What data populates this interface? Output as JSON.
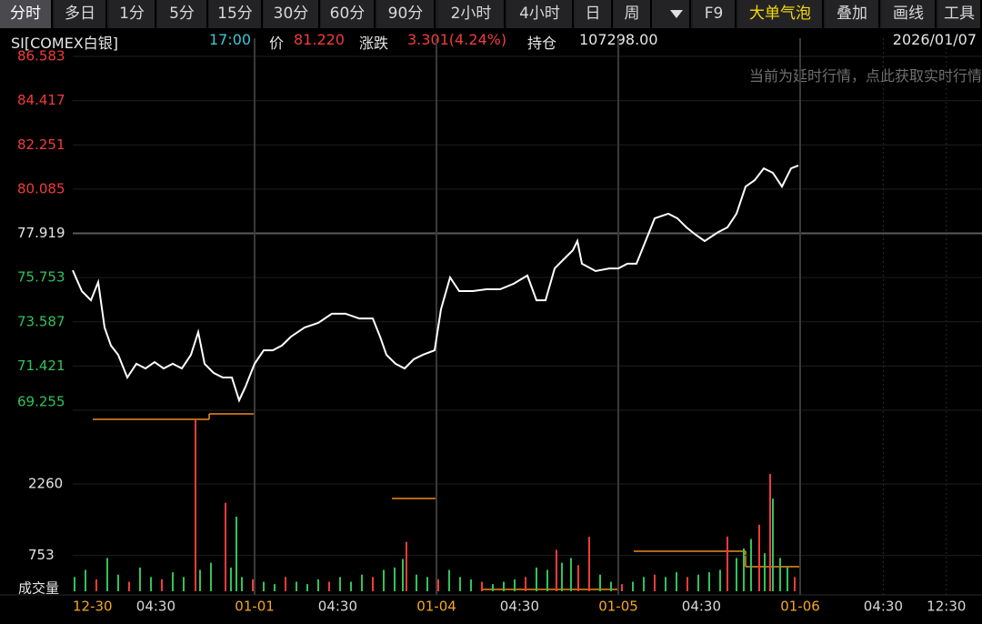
{
  "toolbar": {
    "tabs": [
      "分时",
      "多日",
      "1分",
      "5分",
      "15分",
      "30分",
      "60分",
      "90分",
      "2小时",
      "4小时",
      "日",
      "周"
    ],
    "tools": [
      "F9",
      "大单气泡",
      "叠加",
      "画线",
      "工具"
    ]
  },
  "info": {
    "symbol": "SI[COMEX白银]",
    "time": "17:00",
    "price_label": "价",
    "price": "81.220",
    "change_label": "涨跌",
    "change": "3.301(4.24%)",
    "oi_label": "持仓",
    "oi": "107298.00",
    "date": "2026/01/07",
    "notice": "当前为延时行情，点此获取实时行情"
  },
  "chart_data": {
    "type": "line",
    "xlim": [
      0,
      5
    ],
    "xticks": [
      {
        "value": 0,
        "label": "12-30"
      },
      {
        "value": 0.457,
        "label": "04:30"
      },
      {
        "value": 1,
        "label": "01-01"
      },
      {
        "value": 1.457,
        "label": "04:30"
      },
      {
        "value": 2,
        "label": "01-04"
      },
      {
        "value": 2.457,
        "label": "04:30"
      },
      {
        "value": 3,
        "label": "01-05"
      },
      {
        "value": 3.457,
        "label": "04:30"
      },
      {
        "value": 4,
        "label": "01-06"
      },
      {
        "value": 4.457,
        "label": "04:30"
      },
      {
        "value": 4.804,
        "label": "12:30"
      }
    ],
    "ylim": [
      69.255,
      86.583
    ],
    "yticks": [
      86.583,
      84.417,
      82.251,
      80.085,
      77.919,
      75.753,
      73.587,
      71.421,
      69.255
    ],
    "baseline": 77.919,
    "up_color": "#f23b3b",
    "down_color": "#2fc45a",
    "series": [
      {
        "color": "#ffffff",
        "x": [
          0,
          0.05,
          0.1,
          0.14,
          0.175,
          0.21,
          0.25,
          0.3,
          0.35,
          0.4,
          0.45,
          0.5,
          0.55,
          0.6,
          0.65,
          0.69,
          0.725,
          0.775,
          0.825,
          0.875,
          0.915,
          0.95,
          1.0,
          1.05,
          1.1,
          1.15,
          1.2,
          1.275,
          1.35,
          1.425,
          1.5,
          1.575,
          1.65,
          1.69,
          1.725,
          1.775,
          1.825,
          1.875,
          1.925,
          1.99,
          2.025,
          2.075,
          2.125,
          2.2,
          2.275,
          2.35,
          2.425,
          2.5,
          2.55,
          2.6,
          2.65,
          2.7,
          2.75,
          2.775,
          2.8,
          2.875,
          2.95,
          3.0,
          3.05,
          3.1,
          3.15,
          3.2,
          3.275,
          3.325,
          3.375,
          3.425,
          3.475,
          3.55,
          3.6,
          3.65,
          3.7,
          3.75,
          3.8,
          3.85,
          3.9,
          3.95,
          3.99
        ],
        "values": [
          76.11,
          75.09,
          74.64,
          75.53,
          73.31,
          72.42,
          71.97,
          70.86,
          71.53,
          71.3,
          71.61,
          71.3,
          71.53,
          71.3,
          71.97,
          73.08,
          71.53,
          71.08,
          70.86,
          70.86,
          69.74,
          70.41,
          71.53,
          72.19,
          72.19,
          72.42,
          72.86,
          73.31,
          73.53,
          73.98,
          73.98,
          73.75,
          73.75,
          72.86,
          71.97,
          71.53,
          71.3,
          71.75,
          71.97,
          72.19,
          74.2,
          75.76,
          75.09,
          75.09,
          75.18,
          75.18,
          75.45,
          75.85,
          74.64,
          74.64,
          76.2,
          76.65,
          77.09,
          77.54,
          76.43,
          76.07,
          76.2,
          76.2,
          76.43,
          76.43,
          77.54,
          78.65,
          78.88,
          78.65,
          78.21,
          77.85,
          77.54,
          77.98,
          78.21,
          78.88,
          80.21,
          80.52,
          81.1,
          80.88,
          80.21,
          81.1,
          81.24
        ]
      }
    ],
    "volume": {
      "label": "成交量",
      "ylim": [
        0,
        3600
      ],
      "yticks": [
        2260,
        753
      ],
      "x": [
        0.01,
        0.07,
        0.13,
        0.19,
        0.25,
        0.31,
        0.37,
        0.43,
        0.49,
        0.55,
        0.61,
        0.675,
        0.7,
        0.76,
        0.84,
        0.87,
        0.9,
        0.93,
        0.99,
        1.05,
        1.11,
        1.17,
        1.23,
        1.29,
        1.35,
        1.41,
        1.47,
        1.53,
        1.59,
        1.65,
        1.71,
        1.77,
        1.815,
        1.835,
        1.89,
        1.95,
        2.01,
        2.07,
        2.13,
        2.19,
        2.25,
        2.31,
        2.37,
        2.43,
        2.49,
        2.55,
        2.61,
        2.66,
        2.69,
        2.74,
        2.78,
        2.84,
        2.9,
        2.96,
        3.02,
        3.08,
        3.14,
        3.2,
        3.26,
        3.32,
        3.38,
        3.44,
        3.5,
        3.56,
        3.6,
        3.65,
        3.69,
        3.73,
        3.775,
        3.805,
        3.835,
        3.85,
        3.89,
        3.93,
        3.97
      ],
      "values": [
        300,
        450,
        250,
        700,
        350,
        200,
        500,
        300,
        250,
        400,
        300,
        3600,
        450,
        600,
        1860,
        500,
        1570,
        300,
        250,
        200,
        150,
        300,
        200,
        150,
        250,
        200,
        300,
        200,
        350,
        300,
        450,
        500,
        680,
        1040,
        350,
        300,
        250,
        450,
        300,
        250,
        200,
        150,
        200,
        250,
        300,
        500,
        450,
        870,
        600,
        700,
        550,
        1145,
        350,
        200,
        150,
        200,
        300,
        350,
        300,
        400,
        300,
        350,
        400,
        450,
        1150,
        700,
        900,
        1100,
        1400,
        800,
        2470,
        1950,
        700,
        500,
        300
      ],
      "colors": [
        "#2fc45a",
        "#2fc45a",
        "#f23b3b",
        "#2fc45a",
        "#2fc45a",
        "#f23b3b",
        "#2fc45a",
        "#2fc45a",
        "#f23b3b",
        "#2fc45a",
        "#2fc45a",
        "#f23b3b",
        "#2fc45a",
        "#2fc45a",
        "#f23b3b",
        "#2fc45a",
        "#2fc45a",
        "#2fc45a",
        "#f23b3b",
        "#2fc45a",
        "#2fc45a",
        "#f23b3b",
        "#2fc45a",
        "#2fc45a",
        "#2fc45a",
        "#f23b3b",
        "#2fc45a",
        "#2fc45a",
        "#2fc45a",
        "#f23b3b",
        "#2fc45a",
        "#2fc45a",
        "#2fc45a",
        "#f23b3b",
        "#2fc45a",
        "#2fc45a",
        "#f23b3b",
        "#2fc45a",
        "#2fc45a",
        "#2fc45a",
        "#f23b3b",
        "#2fc45a",
        "#2fc45a",
        "#2fc45a",
        "#f23b3b",
        "#2fc45a",
        "#2fc45a",
        "#f23b3b",
        "#2fc45a",
        "#2fc45a",
        "#f23b3b",
        "#f23b3b",
        "#2fc45a",
        "#2fc45a",
        "#f23b3b",
        "#2fc45a",
        "#2fc45a",
        "#f23b3b",
        "#2fc45a",
        "#2fc45a",
        "#f23b3b",
        "#2fc45a",
        "#2fc45a",
        "#2fc45a",
        "#f23b3b",
        "#2fc45a",
        "#2fc45a",
        "#2fc45a",
        "#f23b3b",
        "#2fc45a",
        "#f23b3b",
        "#2fc45a",
        "#2fc45a",
        "#2fc45a",
        "#f23b3b"
      ]
    }
  }
}
